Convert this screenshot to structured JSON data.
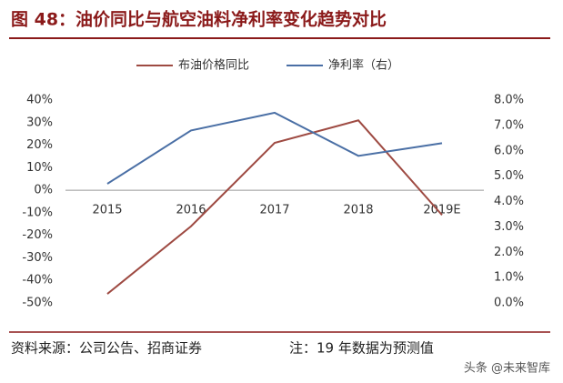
{
  "chart_data": {
    "type": "line",
    "title": "图 48：油价同比与航空油料净利率变化趋势对比",
    "categories": [
      "2015",
      "2016",
      "2017",
      "2018",
      "2019E"
    ],
    "series": [
      {
        "name": "布油价格同比",
        "color": "#9e4a42",
        "values": [
          -46,
          -16,
          21,
          31,
          -11
        ]
      },
      {
        "name": "净利率（右）",
        "color": "#4a6fa5",
        "axis": "y2",
        "values": [
          4.7,
          6.8,
          7.5,
          5.8,
          6.3
        ]
      }
    ],
    "ylim": [
      -50,
      40
    ],
    "yticks": [
      {
        "value": -50,
        "label": "-50%"
      },
      {
        "value": -40,
        "label": "-40%"
      },
      {
        "value": -30,
        "label": "-30%"
      },
      {
        "value": -20,
        "label": "-20%"
      },
      {
        "value": -10,
        "label": "-10%"
      },
      {
        "value": 0,
        "label": "0%"
      },
      {
        "value": 10,
        "label": "10%"
      },
      {
        "value": 20,
        "label": "20%"
      },
      {
        "value": 30,
        "label": "30%"
      },
      {
        "value": 40,
        "label": "40%"
      }
    ],
    "y2lim": [
      0,
      8
    ],
    "y2ticks": [
      {
        "value": 0,
        "label": "0.0%"
      },
      {
        "value": 1,
        "label": "1.0%"
      },
      {
        "value": 2,
        "label": "2.0%"
      },
      {
        "value": 3,
        "label": "3.0%"
      },
      {
        "value": 4,
        "label": "4.0%"
      },
      {
        "value": 5,
        "label": "5.0%"
      },
      {
        "value": 6,
        "label": "6.0%"
      },
      {
        "value": 7,
        "label": "7.0%"
      },
      {
        "value": 8,
        "label": "8.0%"
      }
    ],
    "legend": "top",
    "source": "资料来源：公司公告、招商证券",
    "note": "注：19 年数据为预测值",
    "watermark": "头条 @未来智库"
  }
}
